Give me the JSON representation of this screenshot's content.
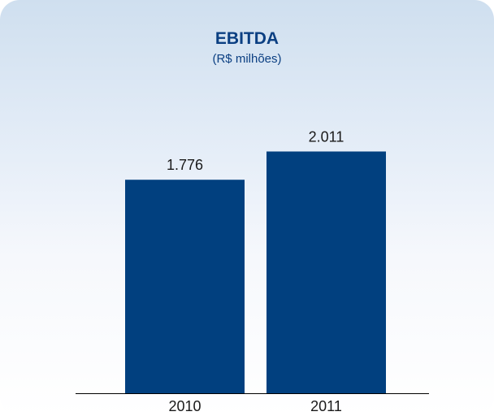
{
  "chart_data": {
    "type": "bar",
    "title": "EBITDA",
    "subtitle": "(R$ milhões)",
    "categories": [
      "2010",
      "2011"
    ],
    "values": [
      1776,
      2011
    ],
    "value_labels": [
      "1.776",
      "2.011"
    ],
    "xlabel": "",
    "ylabel": "",
    "ylim": [
      0,
      2325
    ],
    "grid": false,
    "bar_color": "#01407f",
    "text_color": "#0b3f82"
  }
}
